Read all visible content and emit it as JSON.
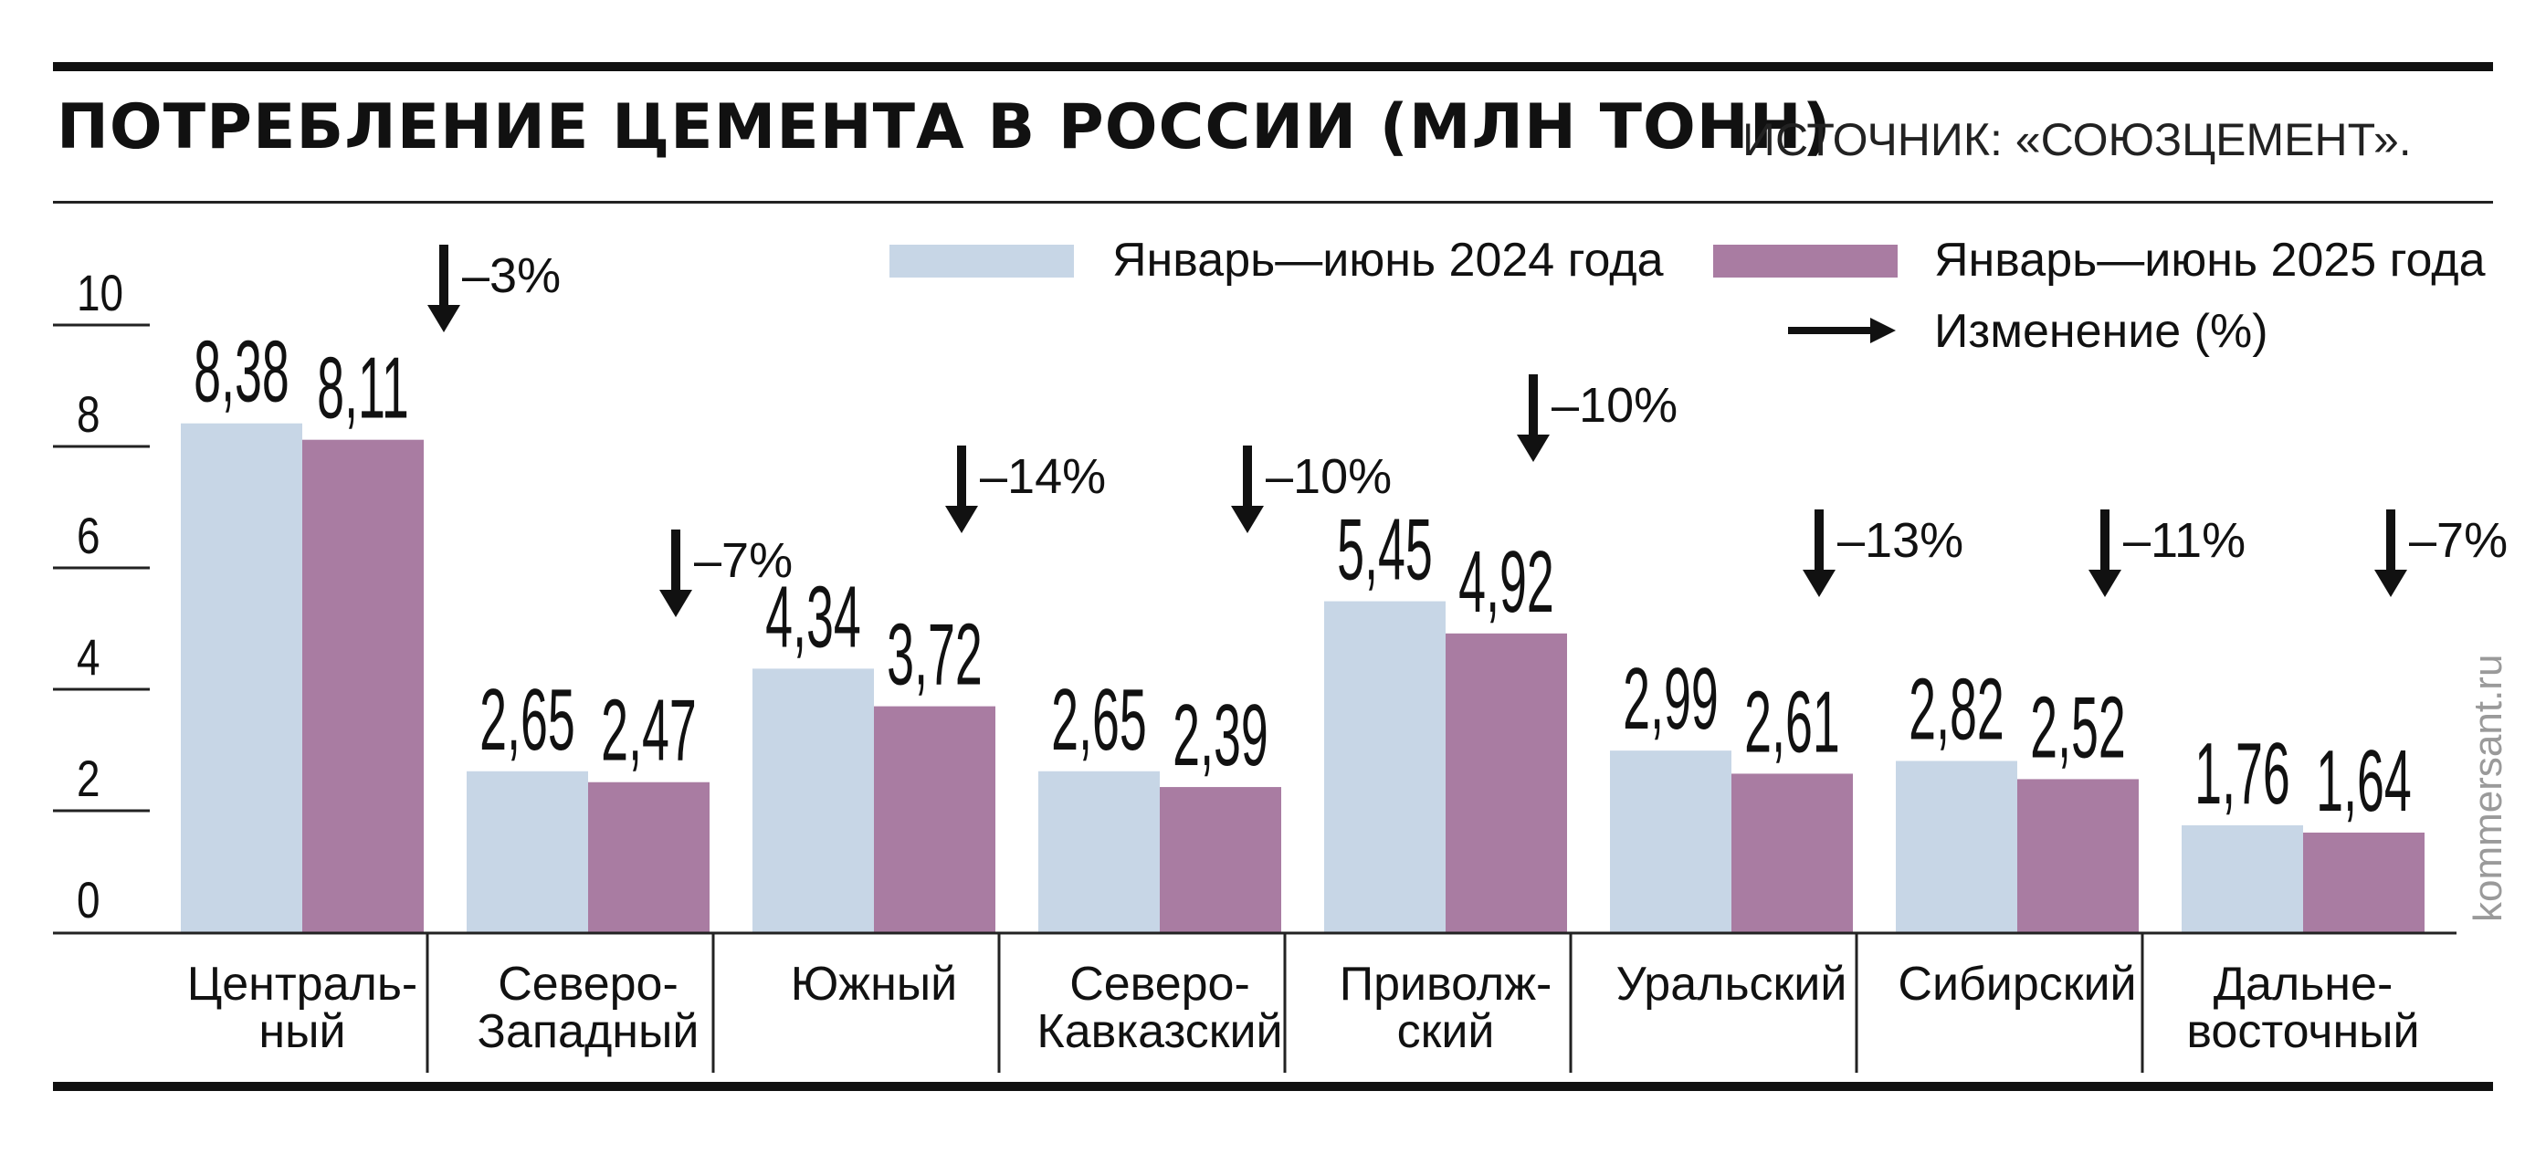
{
  "header": {
    "title": "ПОТРЕБЛЕНИЕ ЦЕМЕНТА В РОССИИ (МЛН ТОНН)",
    "source": "ИСТОЧНИК: «СОЮЗЦЕМЕНТ»."
  },
  "watermark": "kommersant.ru",
  "colors": {
    "series_2024": "#c7d6e6",
    "series_2025": "#a97ca2",
    "text": "#111111",
    "axis": "#222222"
  },
  "chart_data": {
    "type": "bar",
    "title": "ПОТРЕБЛЕНИЕ ЦЕМЕНТА В РОССИИ (МЛН ТОНН)",
    "xlabel": "",
    "ylabel": "",
    "ylim": [
      0,
      10
    ],
    "yticks": [
      "0",
      "2",
      "4",
      "6",
      "8",
      "10"
    ],
    "legend_position": "top-right",
    "grid": false,
    "categories": [
      [
        "Централь-",
        "ный"
      ],
      [
        "Северо-",
        "Западный"
      ],
      [
        "Южный"
      ],
      [
        "Северо-",
        "Кавказский"
      ],
      [
        "Приволж-",
        "ский"
      ],
      [
        "Уральский"
      ],
      [
        "Сибирский"
      ],
      [
        "Дальне-",
        "восточный"
      ]
    ],
    "series": [
      {
        "name": "Январь—июнь 2024 года",
        "values": [
          8.38,
          2.65,
          4.34,
          2.65,
          5.45,
          2.99,
          2.82,
          1.76
        ],
        "labels": [
          "8,38",
          "2,65",
          "4,34",
          "2,65",
          "5,45",
          "2,99",
          "2,82",
          "1,76"
        ]
      },
      {
        "name": "Январь—июнь 2025 года",
        "values": [
          8.11,
          2.47,
          3.72,
          2.39,
          4.92,
          2.61,
          2.52,
          1.64
        ],
        "labels": [
          "8,11",
          "2,47",
          "3,72",
          "2,39",
          "4,92",
          "2,61",
          "2,52",
          "1,64"
        ]
      }
    ],
    "change": {
      "name": "Изменение (%)",
      "values": [
        -3,
        -7,
        -14,
        -10,
        -10,
        -13,
        -11,
        -7
      ],
      "labels": [
        "–3%",
        "–7%",
        "–14%",
        "–10%",
        "–10%",
        "–13%",
        "–11%",
        "–7%"
      ]
    }
  }
}
